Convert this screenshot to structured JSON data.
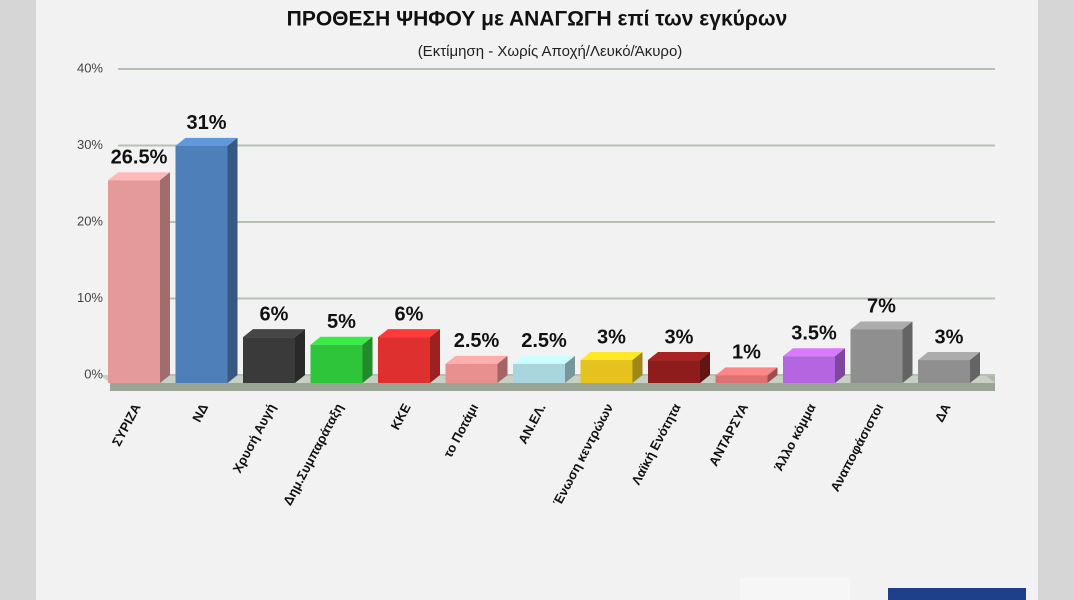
{
  "chart_data": {
    "type": "bar",
    "title": "ΠΡΟΘΕΣΗ ΨΗΦΟΥ με ΑΝΑΓΩΓΗ επί των εγκύρων",
    "subtitle": "(Εκτίμηση  -  Χωρίς Αποχή/Λευκό/Άκυρο)",
    "categories": [
      "ΣΥΡΙΖΑ",
      "ΝΔ",
      "Χρυσή Αυγή",
      "Δημ.Συμπαράταξη",
      "ΚΚΕ",
      "το Ποτάμι",
      "ΑΝ.ΕΛ.",
      "Ένωση κεντρώων",
      "Λαϊκή Ενότητα",
      "ΑΝΤΑΡΣΥΑ",
      "Άλλο κόμμα",
      "Αναποφάσιστοι",
      "ΔΑ"
    ],
    "values": [
      26.5,
      31,
      6,
      5,
      6,
      2.5,
      2.5,
      3,
      3,
      1,
      3.5,
      7,
      3
    ],
    "value_labels": [
      "26.5%",
      "31%",
      "6%",
      "5%",
      "6%",
      "2.5%",
      "2.5%",
      "3%",
      "3%",
      "1%",
      "3.5%",
      "7%",
      "3%"
    ],
    "colors": [
      "#e49a9a",
      "#4f7fb8",
      "#3a3a3a",
      "#2fc53a",
      "#df3030",
      "#e88f8f",
      "#a9d6de",
      "#e6c21e",
      "#8e1c1c",
      "#dd7070",
      "#b466e0",
      "#8f8f8f",
      "#8f8f8f"
    ],
    "ylim": [
      0,
      40
    ],
    "yticks": [
      {
        "value": 0,
        "label": "0%"
      },
      {
        "value": 10,
        "label": "10%"
      },
      {
        "value": 20,
        "label": "20%"
      },
      {
        "value": 30,
        "label": "30%"
      },
      {
        "value": 40,
        "label": "40%"
      }
    ],
    "grid": true
  }
}
